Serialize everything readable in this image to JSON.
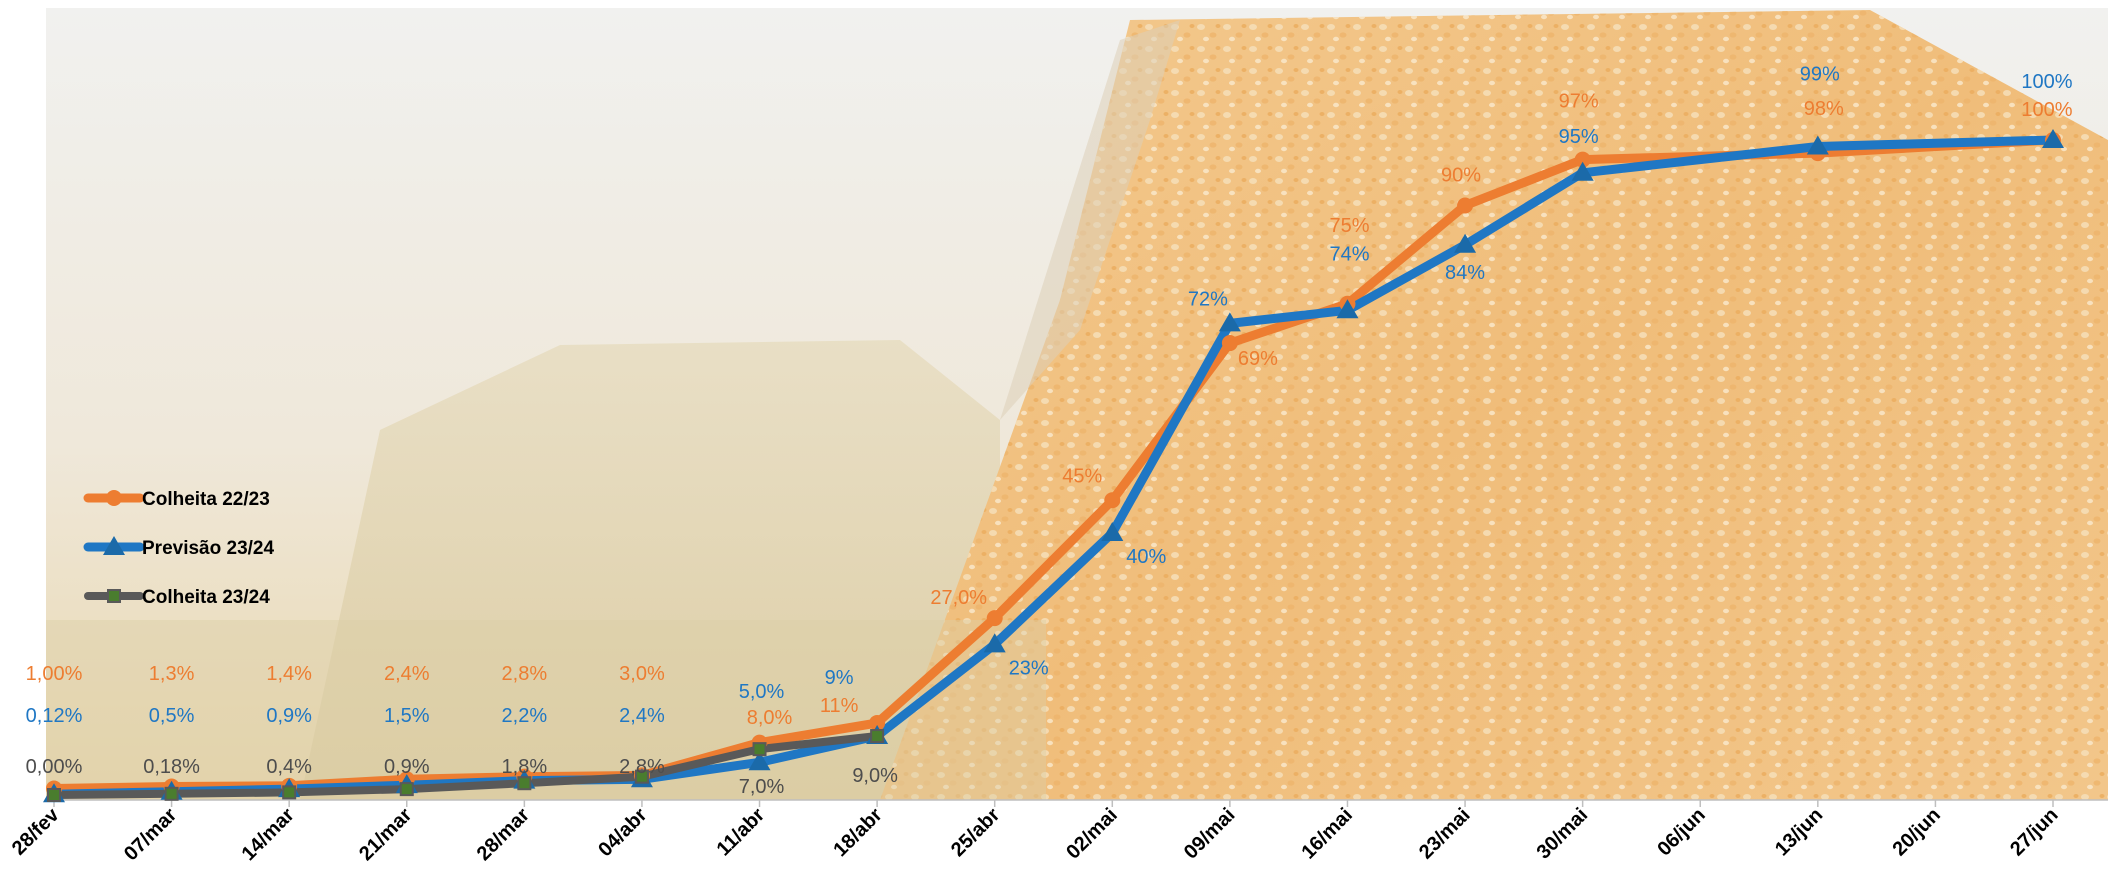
{
  "chart_data": {
    "type": "line",
    "categories": [
      "28/fev",
      "07/mar",
      "14/mar",
      "21/mar",
      "28/mar",
      "04/abr",
      "11/abr",
      "18/abr",
      "25/abr",
      "02/mai",
      "09/mai",
      "16/mai",
      "23/mai",
      "30/mai",
      "06/jun",
      "13/jun",
      "20/jun",
      "27/jun"
    ],
    "ylim": [
      0,
      100
    ],
    "grid": false,
    "legend_position": "left",
    "series": [
      {
        "name": "Colheita 22/23",
        "color": "#ED7D31",
        "marker": "circle",
        "values": [
          1.0,
          1.3,
          1.4,
          2.4,
          2.8,
          3.0,
          8.0,
          11,
          27,
          45,
          69,
          75,
          90,
          97,
          null,
          98,
          null,
          100
        ],
        "labels": [
          "1,00%",
          "1,3%",
          "1,4%",
          "2,4%",
          "2,8%",
          "3,0%",
          "8,0%",
          "11%",
          "27,0%",
          "45%",
          "69%",
          "75%",
          "90%",
          "97%",
          null,
          "98%",
          null,
          "100%"
        ]
      },
      {
        "name": "Previsão 23/24",
        "color": "#1F77C4",
        "marker": "triangle",
        "values": [
          0.12,
          0.5,
          0.9,
          1.5,
          2.2,
          2.4,
          5.0,
          9,
          23,
          40,
          72,
          74,
          84,
          95,
          null,
          99,
          null,
          100
        ],
        "labels": [
          "0,12%",
          "0,5%",
          "0,9%",
          "1,5%",
          "2,2%",
          "2,4%",
          "5,0%",
          "9%",
          "23%",
          "40%",
          "72%",
          "74%",
          "84%",
          "95%",
          null,
          "99%",
          null,
          "100%"
        ]
      },
      {
        "name": "Colheita 23/24",
        "color": "#595959",
        "marker": "square",
        "values": [
          0.0,
          0.18,
          0.4,
          0.9,
          1.8,
          2.8,
          7.0,
          9.0,
          null,
          null,
          null,
          null,
          null,
          null,
          null,
          null,
          null,
          null
        ],
        "labels": [
          "0,00%",
          "0,18%",
          "0,4%",
          "0,9%",
          "1,8%",
          "2,8%",
          "7,0%",
          "9,0%",
          null,
          null,
          null,
          null,
          null,
          null,
          null,
          null,
          null,
          null
        ]
      }
    ]
  }
}
